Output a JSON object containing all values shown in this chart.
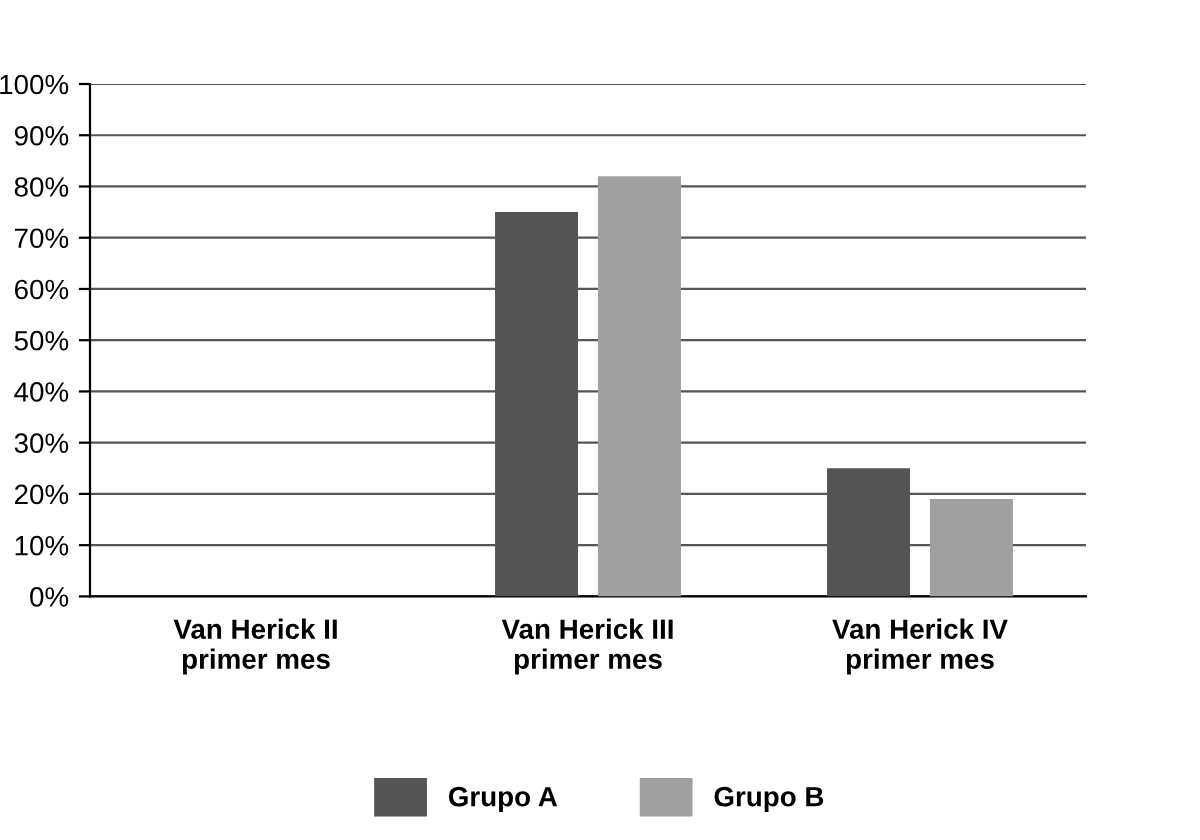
{
  "chart_data": {
    "type": "bar",
    "categories": [
      "Van Herick II\nprimer mes",
      "Van Herick III\nprimer mes",
      "Van Herick IV\nprimer mes"
    ],
    "series": [
      {
        "name": "Grupo A",
        "color": "#555555",
        "values": [
          0,
          75,
          25
        ]
      },
      {
        "name": "Grupo B",
        "color": "#a0a0a0",
        "values": [
          0,
          82,
          19
        ]
      }
    ],
    "ylim": [
      0,
      100
    ],
    "yticks": [
      {
        "value": 0,
        "label": "0%"
      },
      {
        "value": 10,
        "label": "10%"
      },
      {
        "value": 20,
        "label": "20%"
      },
      {
        "value": 30,
        "label": "30%"
      },
      {
        "value": 40,
        "label": "40%"
      },
      {
        "value": 50,
        "label": "50%"
      },
      {
        "value": 60,
        "label": "60%"
      },
      {
        "value": 70,
        "label": "70%"
      },
      {
        "value": 80,
        "label": "80%"
      },
      {
        "value": 90,
        "label": "90%"
      },
      {
        "value": 100,
        "label": "100%"
      }
    ],
    "grid": "y",
    "legend": "bottom"
  }
}
